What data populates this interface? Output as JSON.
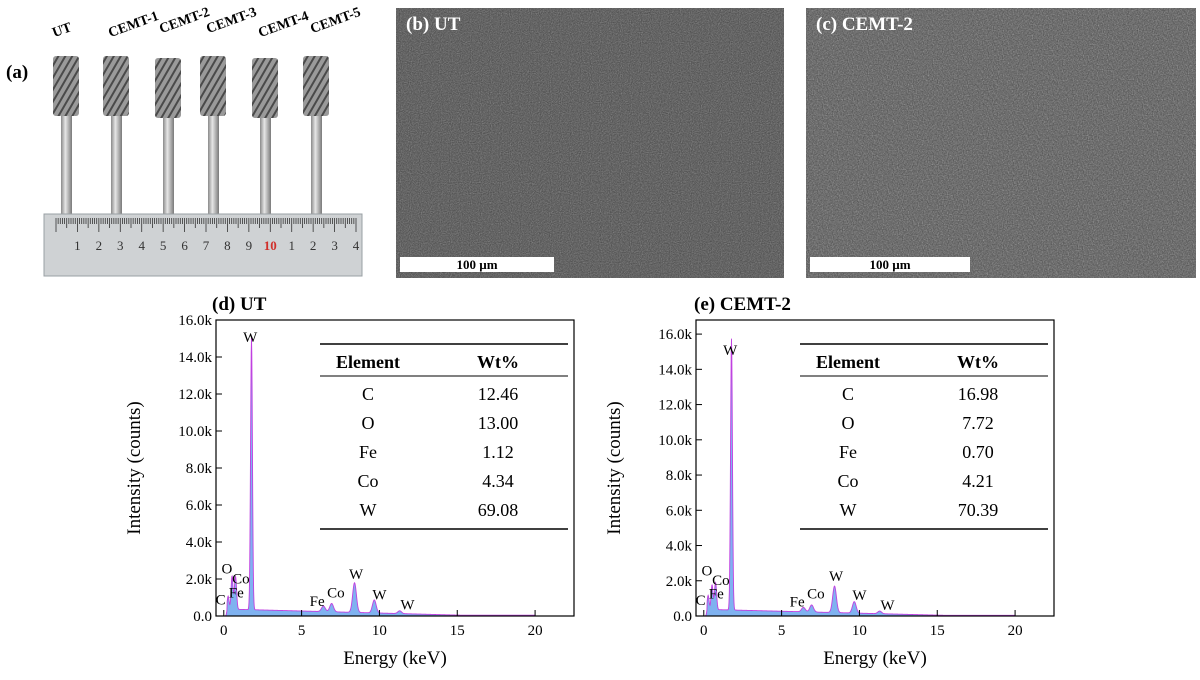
{
  "panel_a": {
    "tag": "(a)",
    "tool_labels": [
      "UT",
      "CEMT-1",
      "CEMT-2",
      "CEMT-3",
      "CEMT-4",
      "CEMT-5"
    ],
    "ruler_numbers": [
      "1",
      "2",
      "3",
      "4",
      "5",
      "6",
      "7",
      "8",
      "9",
      "10",
      "1",
      "2",
      "3",
      "4"
    ],
    "ruler_highlight_index": 9,
    "ruler_highlight_color": "#d0302b"
  },
  "panel_b": {
    "label": "(b) UT",
    "scale": "100 µm"
  },
  "panel_c": {
    "label": "(c) CEMT-2",
    "scale": "100 µm"
  },
  "eds": [
    {
      "title": "(d) UT",
      "table": {
        "headers": [
          "Element",
          "Wt%"
        ],
        "rows": [
          [
            "C",
            "12.46"
          ],
          [
            "O",
            "13.00"
          ],
          [
            "Fe",
            "1.12"
          ],
          [
            "Co",
            "4.34"
          ],
          [
            "W",
            "69.08"
          ]
        ]
      }
    },
    {
      "title": "(e) CEMT-2",
      "table": {
        "headers": [
          "Element",
          "Wt%"
        ],
        "rows": [
          [
            "C",
            "16.98"
          ],
          [
            "O",
            "7.72"
          ],
          [
            "Fe",
            "0.70"
          ],
          [
            "Co",
            "4.21"
          ],
          [
            "W",
            "70.39"
          ]
        ]
      }
    }
  ],
  "chart_data": [
    {
      "type": "area",
      "xlabel": "Energy (keV)",
      "ylabel": "Intensity (counts)",
      "xlim": [
        -0.5,
        22.5
      ],
      "ylim": [
        0,
        16000
      ],
      "x_ticks": [
        0,
        5,
        10,
        15,
        20
      ],
      "y_ticks": [
        0,
        2000,
        4000,
        6000,
        8000,
        10000,
        12000,
        14000,
        16000
      ],
      "y_tick_labels": [
        "0.0",
        "2.0k",
        "4.0k",
        "6.0k",
        "8.0k",
        "10.0k",
        "12.0k",
        "14.0k",
        "16.0k"
      ],
      "colors": {
        "fill": "#7fb2f0",
        "line": "#c040e0"
      },
      "peaks": [
        {
          "x": 0.28,
          "y": 700,
          "label": "C"
        },
        {
          "x": 0.53,
          "y": 1800,
          "label": "O"
        },
        {
          "x": 0.71,
          "y": 900,
          "label": "Fe"
        },
        {
          "x": 0.78,
          "y": 1200,
          "label": "Co"
        },
        {
          "x": 1.78,
          "y": 14700,
          "label": "W"
        },
        {
          "x": 6.4,
          "y": 300,
          "label": "Fe"
        },
        {
          "x": 6.93,
          "y": 450,
          "label": "Co"
        },
        {
          "x": 8.4,
          "y": 1600,
          "label": "W"
        },
        {
          "x": 9.67,
          "y": 700,
          "label": "W"
        },
        {
          "x": 11.3,
          "y": 150,
          "label": "W"
        }
      ]
    },
    {
      "type": "area",
      "xlabel": "Energy (keV)",
      "ylabel": "Intensity (counts)",
      "xlim": [
        -0.5,
        22.5
      ],
      "ylim": [
        0,
        16800
      ],
      "x_ticks": [
        0,
        5,
        10,
        15,
        20
      ],
      "y_ticks": [
        0,
        2000,
        4000,
        6000,
        8000,
        10000,
        12000,
        14000,
        16000
      ],
      "y_tick_labels": [
        "0.0",
        "2.0k",
        "4.0k",
        "6.0k",
        "8.0k",
        "10.0k",
        "12.0k",
        "14.0k",
        "16.0k"
      ],
      "colors": {
        "fill": "#7fb2f0",
        "line": "#c040e0"
      },
      "peaks": [
        {
          "x": 0.28,
          "y": 800,
          "label": "C"
        },
        {
          "x": 0.53,
          "y": 1400,
          "label": "O"
        },
        {
          "x": 0.71,
          "y": 700,
          "label": "Fe"
        },
        {
          "x": 0.78,
          "y": 1100,
          "label": "Co"
        },
        {
          "x": 1.78,
          "y": 15400,
          "label": "W"
        },
        {
          "x": 6.4,
          "y": 250,
          "label": "Fe"
        },
        {
          "x": 6.93,
          "y": 400,
          "label": "Co"
        },
        {
          "x": 8.4,
          "y": 1500,
          "label": "W"
        },
        {
          "x": 9.67,
          "y": 650,
          "label": "W"
        },
        {
          "x": 11.3,
          "y": 150,
          "label": "W"
        }
      ]
    }
  ]
}
